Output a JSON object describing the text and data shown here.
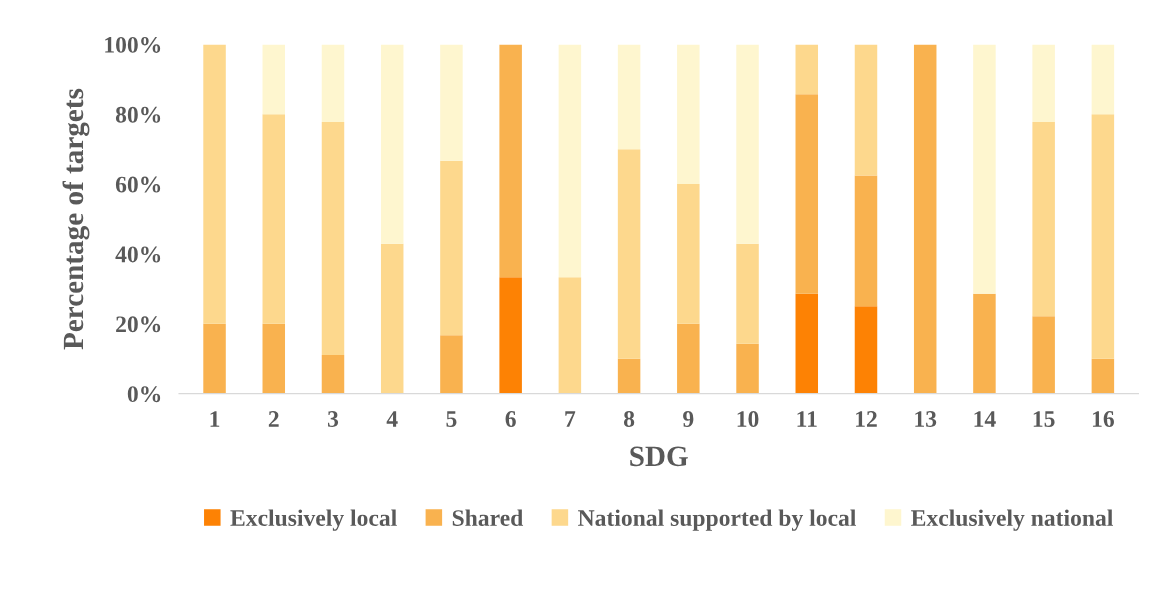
{
  "chart_data": {
    "type": "bar",
    "stacked": true,
    "xlabel": "SDG",
    "ylabel": "Percentage of targets",
    "categories": [
      "1",
      "2",
      "3",
      "4",
      "5",
      "6",
      "7",
      "8",
      "9",
      "10",
      "11",
      "12",
      "13",
      "14",
      "15",
      "16"
    ],
    "series": [
      {
        "name": "Exclusively local",
        "color": "#fd8204",
        "values": [
          0,
          0,
          0,
          0,
          0,
          33.3,
          0,
          0,
          0,
          0,
          28.6,
          25,
          0,
          0,
          0,
          0
        ]
      },
      {
        "name": "Shared",
        "color": "#f9b24f",
        "values": [
          20,
          20,
          11.1,
          0,
          16.7,
          66.7,
          0,
          10,
          20,
          14.3,
          57.1,
          37.5,
          100,
          28.6,
          22.2,
          10
        ]
      },
      {
        "name": "National supported by local",
        "color": "#fdd88d",
        "values": [
          80,
          60,
          66.7,
          42.9,
          50,
          0,
          33.3,
          60,
          40,
          28.6,
          14.3,
          37.5,
          0,
          0,
          55.6,
          70
        ]
      },
      {
        "name": "Exclusively national",
        "color": "#fef6cf",
        "values": [
          0,
          20,
          22.2,
          57.1,
          33.3,
          0,
          66.7,
          30,
          40,
          57.1,
          0,
          0,
          0,
          71.4,
          22.2,
          20
        ]
      }
    ],
    "ylim": [
      0,
      100
    ],
    "yticks": [
      {
        "value": 0,
        "label": "0%"
      },
      {
        "value": 20,
        "label": "20%"
      },
      {
        "value": 40,
        "label": "40%"
      },
      {
        "value": 60,
        "label": "60%"
      },
      {
        "value": 80,
        "label": "80%"
      },
      {
        "value": 100,
        "label": "100%"
      }
    ],
    "grid": false,
    "legend": "bottom"
  }
}
